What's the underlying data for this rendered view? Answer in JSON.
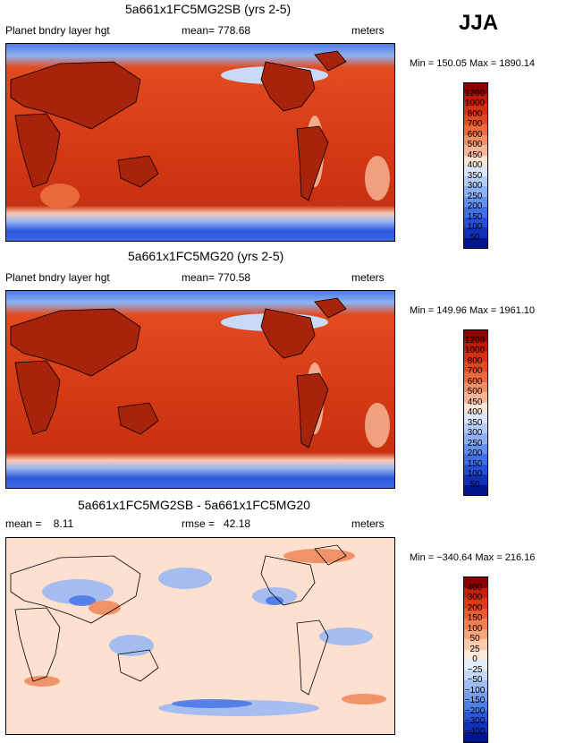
{
  "season": "JJA",
  "panels": [
    {
      "title": "5a661x1FC5MG2SB (yrs 2-5)",
      "field_label": "Planet bndry layer hgt",
      "mean_label": "mean= 778.68",
      "units": "meters",
      "minmax": "Min = 150.05 Max = 1890.14",
      "levels": [
        "1200",
        "1000",
        "800",
        "700",
        "600",
        "500",
        "450",
        "400",
        "350",
        "300",
        "250",
        "200",
        "150",
        "100",
        "50"
      ],
      "colors": [
        "#8b0000",
        "#b81d0b",
        "#d42f13",
        "#e04a1f",
        "#ea6a3a",
        "#f28f64",
        "#f8b595",
        "#fde3d2",
        "#dbe6fb",
        "#b4ccf6",
        "#8cb0f2",
        "#6591ed",
        "#3f6fe6",
        "#244ed6",
        "#1030b5",
        "#03158b"
      ]
    },
    {
      "title": "5a661x1FC5MG20 (yrs 2-5)",
      "field_label": "Planet bndry layer hgt",
      "mean_label": "mean= 770.58",
      "units": "meters",
      "minmax": "Min = 149.96 Max = 1961.10",
      "levels": [
        "1200",
        "1000",
        "800",
        "700",
        "600",
        "500",
        "450",
        "400",
        "350",
        "300",
        "250",
        "200",
        "150",
        "100",
        "50"
      ],
      "colors": [
        "#8b0000",
        "#b81d0b",
        "#d42f13",
        "#e04a1f",
        "#ea6a3a",
        "#f28f64",
        "#f8b595",
        "#fde3d2",
        "#dbe6fb",
        "#b4ccf6",
        "#8cb0f2",
        "#6591ed",
        "#3f6fe6",
        "#244ed6",
        "#1030b5",
        "#03158b"
      ]
    },
    {
      "title": "5a661x1FC5MG2SB - 5a661x1FC5MG20",
      "mean_label": "mean =    8.11",
      "rmse_label": "rmse =   42.18",
      "units": "meters",
      "minmax": "Min = −340.64 Max = 216.16",
      "levels": [
        "400",
        "300",
        "200",
        "150",
        "100",
        "50",
        "25",
        "0",
        "−25",
        "−50",
        "−100",
        "−150",
        "−200",
        "−300",
        "−400"
      ],
      "colors": [
        "#8b0000",
        "#c0210d",
        "#dc3a18",
        "#ea5b2e",
        "#f2804f",
        "#f8a57a",
        "#fcc9aa",
        "#fde9dc",
        "#e5eefc",
        "#c6d7f8",
        "#9fbcf3",
        "#789fee",
        "#4e7de8",
        "#2a55d8",
        "#1030b5",
        "#03158b"
      ]
    }
  ]
}
